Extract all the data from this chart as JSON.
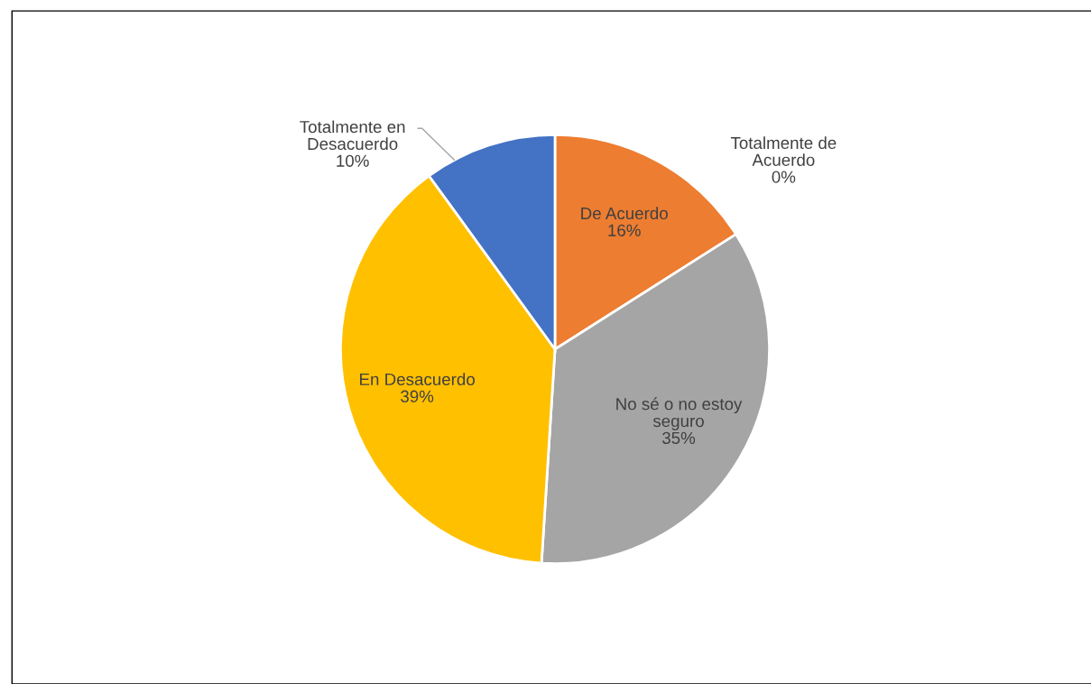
{
  "chart_data": {
    "type": "pie",
    "categories": [
      "Totalmente de Acuerdo",
      "De Acuerdo",
      "No sé o no estoy seguro",
      "En Desacuerdo",
      "Totalmente en Desacuerdo"
    ],
    "values": [
      0,
      16,
      35,
      39,
      10
    ],
    "colors": [
      "#5b9bd5",
      "#ed7d31",
      "#a5a5a5",
      "#ffc000",
      "#4472c4"
    ],
    "value_labels": [
      "0%",
      "16%",
      "35%",
      "39%",
      "10%"
    ],
    "legend": false
  }
}
